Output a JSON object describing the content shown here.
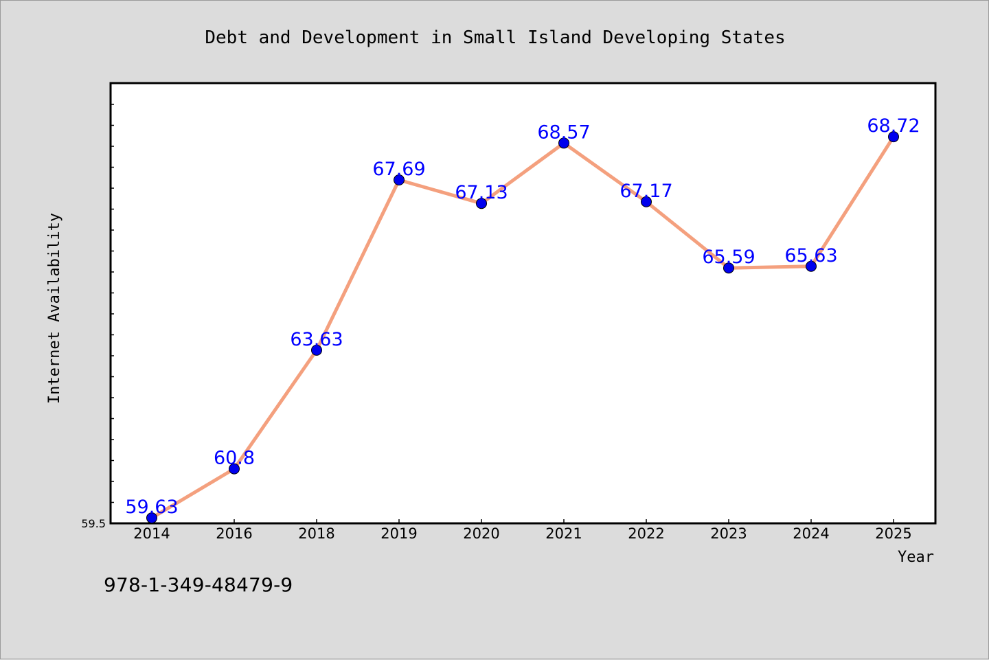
{
  "chart_data": {
    "type": "line",
    "title": "Debt and Development in Small Island Developing States",
    "xlabel": "Year",
    "ylabel": "Internet Availability",
    "categories": [
      "2014",
      "2016",
      "2018",
      "2019",
      "2020",
      "2021",
      "2022",
      "2023",
      "2024",
      "2025"
    ],
    "series": [
      {
        "values": [
          59.63,
          60.8,
          63.63,
          67.69,
          67.13,
          68.57,
          67.17,
          65.59,
          65.63,
          68.72
        ],
        "labels": [
          "59.63",
          "60.8",
          "63.63",
          "67.69",
          "67.13",
          "68.57",
          "67.17",
          "65.59",
          "65.63",
          "68.72"
        ],
        "line_color": "#f4a07e",
        "marker_color": "#0000ee",
        "label_color": "#0000ff"
      }
    ],
    "ylim": [
      59.5,
      70.0
    ],
    "y_min_label": "59.5",
    "grid": false,
    "legend": "none"
  },
  "footnote": "978-1-349-48479-9",
  "colors": {
    "background": "#dcdcdc",
    "plot_background": "#ffffff"
  }
}
